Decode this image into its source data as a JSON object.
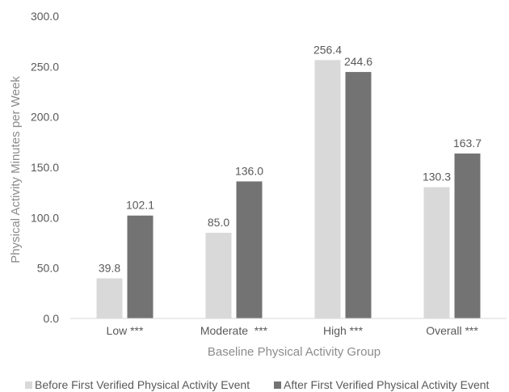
{
  "chart_data": {
    "type": "bar",
    "title": "",
    "xlabel": "Baseline Physical Activity Group",
    "ylabel": "Physical Activity Minutes per Week",
    "categories": [
      "Low ***",
      "Moderate  ***",
      "High ***",
      "Overall ***"
    ],
    "series": [
      {
        "name": "Before First Verified Physical Activity Event",
        "values": [
          39.8,
          85.0,
          256.4,
          130.3
        ],
        "labels": [
          "39.8",
          "85.0",
          "256.4",
          "130.3"
        ],
        "color": "#d9d9d9"
      },
      {
        "name": "After First Verified Physical Activity Event",
        "values": [
          102.1,
          136.0,
          244.6,
          163.7
        ],
        "labels": [
          "102.1",
          "136.0",
          "244.6",
          "163.7"
        ],
        "color": "#737373"
      }
    ],
    "ylim": [
      0,
      300
    ],
    "yticks": [
      "0.0",
      "50.0",
      "100.0",
      "150.0",
      "200.0",
      "250.0",
      "300.0"
    ],
    "grid": false,
    "legend": "bottom"
  }
}
